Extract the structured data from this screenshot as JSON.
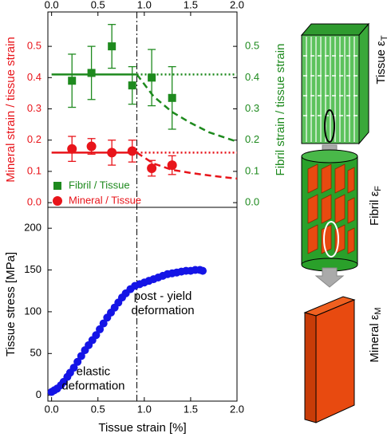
{
  "chart_data": [
    {
      "type": "scatter",
      "ylabel": "Mineral strain / tissue strain",
      "y2label": "Fibril strain / tissue strain",
      "xlim": [
        -0.04,
        2.0
      ],
      "xticks": [
        {
          "value": 0,
          "label": "0.0"
        },
        0.5,
        {
          "value": 1,
          "label": "1.0"
        },
        1.5,
        {
          "value": 2,
          "label": "2.0"
        }
      ],
      "xaxis_position": "top",
      "ylim": [
        -0.015,
        0.61
      ],
      "yticks": [
        {
          "value": 0,
          "label": "0.0"
        },
        0.1,
        0.2,
        0.3,
        0.4,
        0.5
      ],
      "y2lim": [
        -0.015,
        0.61
      ],
      "y2ticks": [
        {
          "value": 0,
          "label": "0.0"
        },
        0.1,
        0.2,
        0.3,
        0.4,
        0.5
      ],
      "yield_x": 0.92,
      "legend": "lower left",
      "series": [
        {
          "name": "Fibril / Tissue",
          "color": "#1e8a1e",
          "marker": "square",
          "axis": "y2",
          "x": [
            0.22,
            0.43,
            0.65,
            0.87,
            1.08,
            1.3
          ],
          "values": [
            0.39,
            0.415,
            0.5,
            0.375,
            0.4,
            0.335
          ],
          "errors": [
            0.085,
            0.085,
            0.07,
            0.06,
            0.09,
            0.1
          ]
        },
        {
          "name": "Mineral / Tissue",
          "color": "#e8141a",
          "marker": "circle",
          "x": [
            0.22,
            0.43,
            0.65,
            0.87,
            1.08,
            1.3
          ],
          "values": [
            0.172,
            0.18,
            0.16,
            0.165,
            0.11,
            0.12
          ],
          "errors": [
            0.04,
            0.025,
            0.04,
            0.035,
            0.025,
            0.03
          ]
        }
      ],
      "lines": [
        {
          "color": "#1e8a1e",
          "style": "solid",
          "axis": "y2",
          "x": [
            0,
            0.92
          ],
          "values": [
            0.41,
            0.41
          ]
        },
        {
          "color": "#1e8a1e",
          "style": "dotted",
          "axis": "y2",
          "x": [
            0.92,
            2.0
          ],
          "values": [
            0.41,
            0.41
          ]
        },
        {
          "color": "#1e8a1e",
          "style": "dashed",
          "axis": "y2",
          "x": [
            0.92,
            1.1,
            1.3,
            1.5,
            1.7,
            1.9,
            2.0
          ],
          "values": [
            0.41,
            0.34,
            0.29,
            0.255,
            0.225,
            0.205,
            0.195
          ]
        },
        {
          "color": "#e8141a",
          "style": "solid",
          "x": [
            0,
            0.92
          ],
          "values": [
            0.16,
            0.16
          ]
        },
        {
          "color": "#e8141a",
          "style": "dotted",
          "x": [
            0.92,
            2.0
          ],
          "values": [
            0.16,
            0.16
          ]
        },
        {
          "color": "#e8141a",
          "style": "dashed",
          "x": [
            0.92,
            1.1,
            1.3,
            1.5,
            1.7,
            1.9,
            2.0
          ],
          "values": [
            0.16,
            0.125,
            0.105,
            0.095,
            0.087,
            0.08,
            0.077
          ]
        }
      ]
    },
    {
      "type": "scatter",
      "xlabel": "Tissue strain [%]",
      "ylabel": "Tissue stress [MPa]",
      "xlim": [
        -0.04,
        2.0
      ],
      "xticks": [
        {
          "value": 0,
          "label": "0.0"
        },
        0.5,
        {
          "value": 1,
          "label": "1.0"
        },
        1.5,
        {
          "value": 2,
          "label": "2.0"
        }
      ],
      "xaxis_position": "bottom",
      "ylim": [
        -7,
        225
      ],
      "yticks": [
        0,
        50,
        100,
        150,
        200
      ],
      "annotations": [
        [
          "post - yield",
          "deformation"
        ],
        [
          "elastic",
          "deformation"
        ]
      ],
      "series": [
        {
          "color": "#1414e6",
          "marker": "circle",
          "x": [
            0,
            0.03,
            0.06,
            0.1,
            0.13,
            0.17,
            0.2,
            0.24,
            0.28,
            0.32,
            0.36,
            0.4,
            0.44,
            0.48,
            0.52,
            0.56,
            0.6,
            0.64,
            0.68,
            0.72,
            0.76,
            0.8,
            0.85,
            0.9,
            0.95,
            1.0,
            1.05,
            1.1,
            1.15,
            1.2,
            1.25,
            1.3,
            1.35,
            1.4,
            1.45,
            1.5,
            1.55,
            1.6,
            1.63
          ],
          "values": [
            4,
            6,
            8,
            12,
            16,
            22,
            27,
            33,
            40,
            47,
            54,
            60,
            66,
            72,
            79,
            86,
            93,
            99,
            105,
            111,
            117,
            122,
            127,
            131,
            133,
            135,
            137,
            139,
            141,
            143,
            145,
            146,
            147,
            148,
            149,
            149,
            150,
            150,
            149
          ]
        }
      ]
    }
  ],
  "diagram": {
    "labels": [
      {
        "text": "Tissue ε",
        "sub": "T"
      },
      {
        "text": "Fibril ε",
        "sub": "F"
      },
      {
        "text": "Mineral ε",
        "sub": "M"
      }
    ]
  }
}
